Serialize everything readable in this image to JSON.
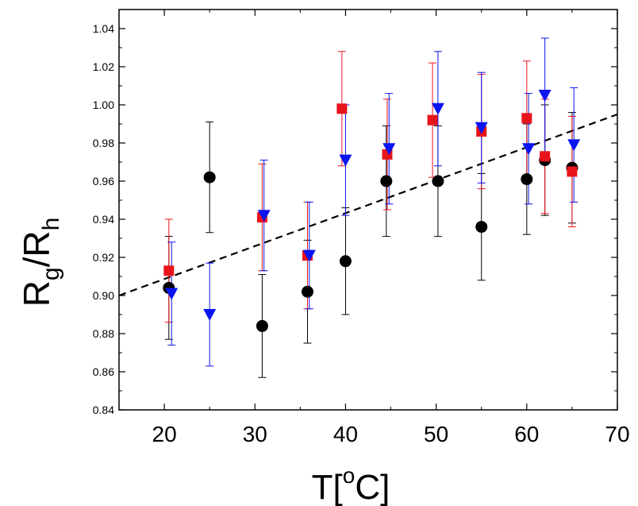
{
  "chart_data": {
    "type": "scatter",
    "xlabel": "T[°C]",
    "xlabel_parts": {
      "main": "T[",
      "sup": "o",
      "end": "C]"
    },
    "ylabel": "Rg/Rh",
    "ylabel_parts": {
      "r1": "R",
      "s1": "g",
      "slash": "/R",
      "s2": "h"
    },
    "xlim": [
      15,
      70
    ],
    "ylim": [
      0.84,
      1.05
    ],
    "xticks": [
      "20",
      "30",
      "40",
      "50",
      "60",
      "70"
    ],
    "xtick_values": [
      20,
      30,
      40,
      50,
      60,
      70
    ],
    "yticks": [
      "0.84",
      "0.86",
      "0.88",
      "0.90",
      "0.92",
      "0.94",
      "0.96",
      "0.98",
      "1.00",
      "1.02",
      "1.04"
    ],
    "ytick_values": [
      0.84,
      0.86,
      0.88,
      0.9,
      0.92,
      0.94,
      0.96,
      0.98,
      1.0,
      1.02,
      1.04
    ],
    "grid": false,
    "legend": false,
    "series": [
      {
        "marker": "circle",
        "color": "#000000",
        "points": [
          {
            "x": 20.5,
            "y": 0.904,
            "err": 0.027
          },
          {
            "x": 25.0,
            "y": 0.962,
            "err": 0.029
          },
          {
            "x": 30.8,
            "y": 0.884,
            "err": 0.027
          },
          {
            "x": 35.8,
            "y": 0.902,
            "err": 0.027
          },
          {
            "x": 40.0,
            "y": 0.918,
            "err": 0.028
          },
          {
            "x": 44.5,
            "y": 0.96,
            "err": 0.029
          },
          {
            "x": 50.2,
            "y": 0.96,
            "err": 0.029
          },
          {
            "x": 55.0,
            "y": 0.936,
            "err": 0.028
          },
          {
            "x": 60.0,
            "y": 0.961,
            "err": 0.029
          },
          {
            "x": 62.0,
            "y": 0.971,
            "err": 0.029
          },
          {
            "x": 65.0,
            "y": 0.967,
            "err": 0.029
          }
        ]
      },
      {
        "marker": "square",
        "color": "#e8141c",
        "points": [
          {
            "x": 20.5,
            "y": 0.913,
            "err": 0.027
          },
          {
            "x": 30.8,
            "y": 0.941,
            "err": 0.028
          },
          {
            "x": 35.8,
            "y": 0.921,
            "err": 0.028
          },
          {
            "x": 39.6,
            "y": 0.998,
            "err": 0.03
          },
          {
            "x": 44.6,
            "y": 0.974,
            "err": 0.029
          },
          {
            "x": 49.6,
            "y": 0.992,
            "err": 0.03
          },
          {
            "x": 55.0,
            "y": 0.986,
            "err": 0.03
          },
          {
            "x": 60.0,
            "y": 0.993,
            "err": 0.03
          },
          {
            "x": 62.0,
            "y": 0.973,
            "err": 0.03
          },
          {
            "x": 65.0,
            "y": 0.965,
            "err": 0.029
          }
        ]
      },
      {
        "marker": "triangle-down",
        "color": "#0a14f0",
        "points": [
          {
            "x": 20.8,
            "y": 0.901,
            "err": 0.027
          },
          {
            "x": 25.0,
            "y": 0.89,
            "err": 0.027
          },
          {
            "x": 31.0,
            "y": 0.942,
            "err": 0.029
          },
          {
            "x": 36.0,
            "y": 0.921,
            "err": 0.028
          },
          {
            "x": 40.0,
            "y": 0.971,
            "err": 0.029
          },
          {
            "x": 44.8,
            "y": 0.977,
            "err": 0.029
          },
          {
            "x": 50.2,
            "y": 0.998,
            "err": 0.03
          },
          {
            "x": 55.0,
            "y": 0.988,
            "err": 0.029
          },
          {
            "x": 60.2,
            "y": 0.977,
            "err": 0.029
          },
          {
            "x": 62.0,
            "y": 1.005,
            "err": 0.03
          },
          {
            "x": 65.2,
            "y": 0.979,
            "err": 0.03
          }
        ]
      }
    ],
    "fit_line": {
      "style": "dashed",
      "color": "#000000",
      "x": [
        15,
        70
      ],
      "y": [
        0.9,
        0.995
      ]
    }
  }
}
